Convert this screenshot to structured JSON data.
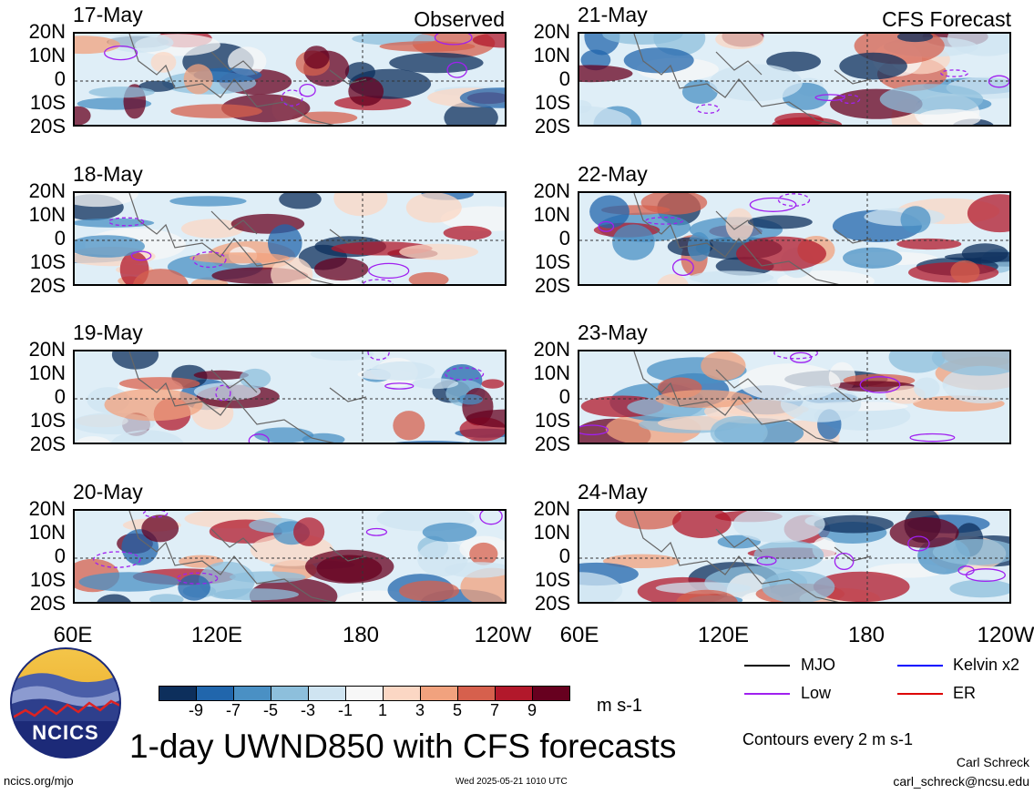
{
  "header": {
    "left_column_label": "Observed",
    "right_column_label": "CFS Forecast"
  },
  "panels": [
    {
      "date": "17-May",
      "column": "observed"
    },
    {
      "date": "18-May",
      "column": "observed"
    },
    {
      "date": "19-May",
      "column": "observed"
    },
    {
      "date": "20-May",
      "column": "observed"
    },
    {
      "date": "21-May",
      "column": "forecast"
    },
    {
      "date": "22-May",
      "column": "forecast"
    },
    {
      "date": "23-May",
      "column": "forecast"
    },
    {
      "date": "24-May",
      "column": "forecast"
    }
  ],
  "axes": {
    "lat_labels": [
      "20N",
      "10N",
      "0",
      "10S",
      "20S"
    ],
    "lon_labels": [
      "60E",
      "120E",
      "180",
      "120W"
    ]
  },
  "colorbar": {
    "ticks": [
      "-9",
      "-7",
      "-5",
      "-3",
      "-1",
      "1",
      "3",
      "5",
      "7",
      "9"
    ],
    "unit": "m s-1",
    "colors": [
      "#0d2f5c",
      "#2166ac",
      "#4a90c4",
      "#8dbfdc",
      "#cfe4f1",
      "#f7f7f7",
      "#fbd7c4",
      "#f1a27e",
      "#d6604d",
      "#b2182b",
      "#67001f"
    ]
  },
  "legend": {
    "items": [
      {
        "label": "MJO",
        "color": "#000000"
      },
      {
        "label": "Kelvin x2",
        "color": "#0000ff"
      },
      {
        "label": "Low",
        "color": "#a020f0"
      },
      {
        "label": "ER",
        "color": "#dd0000"
      }
    ],
    "contour_note": "Contours every 2 m s-1"
  },
  "footer": {
    "title": "1-day UWND850 with CFS forecasts",
    "url": "ncics.org/mjo",
    "timestamp": "Wed 2025-05-21 1010 UTC",
    "author": "Carl Schreck",
    "email": "carl_schreck@ncsu.edu",
    "logo_text": "NCICS"
  }
}
